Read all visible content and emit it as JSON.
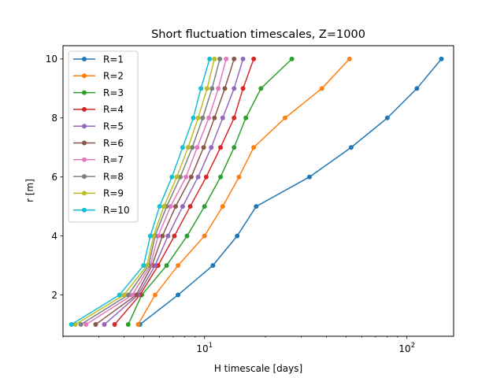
{
  "chart_data": {
    "type": "line",
    "title": "Short fluctuation timescales, Z=1000",
    "xlabel": "H timescale [days]",
    "ylabel": "r [m]",
    "xscale": "log",
    "xlim": [
      2.0,
      170
    ],
    "ylim": [
      0.6,
      10.45
    ],
    "x_ticks": [
      {
        "value": 10,
        "base": "10",
        "exp": "1"
      },
      {
        "value": 100,
        "base": "10",
        "exp": "2"
      }
    ],
    "y_ticks": [
      2,
      4,
      6,
      8,
      10
    ],
    "grid": false,
    "legend_position": "top-left",
    "y": [
      1,
      2,
      3,
      4,
      5,
      6,
      7,
      8,
      9,
      10
    ],
    "series": [
      {
        "name": "R=1",
        "color": "#1f77b4",
        "x": [
          4.8,
          7.4,
          11.0,
          14.5,
          18.0,
          33.0,
          53.0,
          80.0,
          112.0,
          148.0
        ]
      },
      {
        "name": "R=2",
        "color": "#ff7f0e",
        "x": [
          4.7,
          5.7,
          7.4,
          10.0,
          12.3,
          14.8,
          17.5,
          25.0,
          38.0,
          52.0
        ]
      },
      {
        "name": "R=3",
        "color": "#2ca02c",
        "x": [
          4.2,
          4.9,
          6.5,
          8.2,
          10.0,
          12.0,
          14.0,
          16.0,
          19.0,
          27.0
        ]
      },
      {
        "name": "R=4",
        "color": "#d62728",
        "x": [
          3.6,
          4.8,
          5.9,
          7.1,
          8.5,
          10.2,
          12.0,
          14.0,
          15.5,
          17.5
        ]
      },
      {
        "name": "R=5",
        "color": "#9467bd",
        "x": [
          3.2,
          4.7,
          5.7,
          6.6,
          7.8,
          9.3,
          10.8,
          12.3,
          14.0,
          15.5
        ]
      },
      {
        "name": "R=6",
        "color": "#8c564b",
        "x": [
          2.9,
          4.6,
          5.5,
          6.2,
          7.2,
          8.6,
          9.9,
          11.2,
          12.6,
          14.0
        ]
      },
      {
        "name": "R=7",
        "color": "#e377c2",
        "x": [
          2.6,
          4.4,
          5.4,
          5.9,
          6.8,
          8.1,
          9.2,
          10.5,
          11.7,
          12.8
        ]
      },
      {
        "name": "R=8",
        "color": "#7f7f7f",
        "x": [
          2.45,
          4.2,
          5.3,
          5.7,
          6.5,
          7.6,
          8.7,
          9.8,
          10.9,
          11.9
        ]
      },
      {
        "name": "R=9",
        "color": "#bcbd22",
        "x": [
          2.3,
          4.0,
          5.2,
          5.6,
          6.3,
          7.3,
          8.3,
          9.3,
          10.3,
          11.2
        ]
      },
      {
        "name": "R=10",
        "color": "#17becf",
        "x": [
          2.2,
          3.8,
          5.0,
          5.4,
          6.0,
          6.9,
          7.8,
          8.8,
          9.6,
          10.6
        ]
      }
    ]
  }
}
